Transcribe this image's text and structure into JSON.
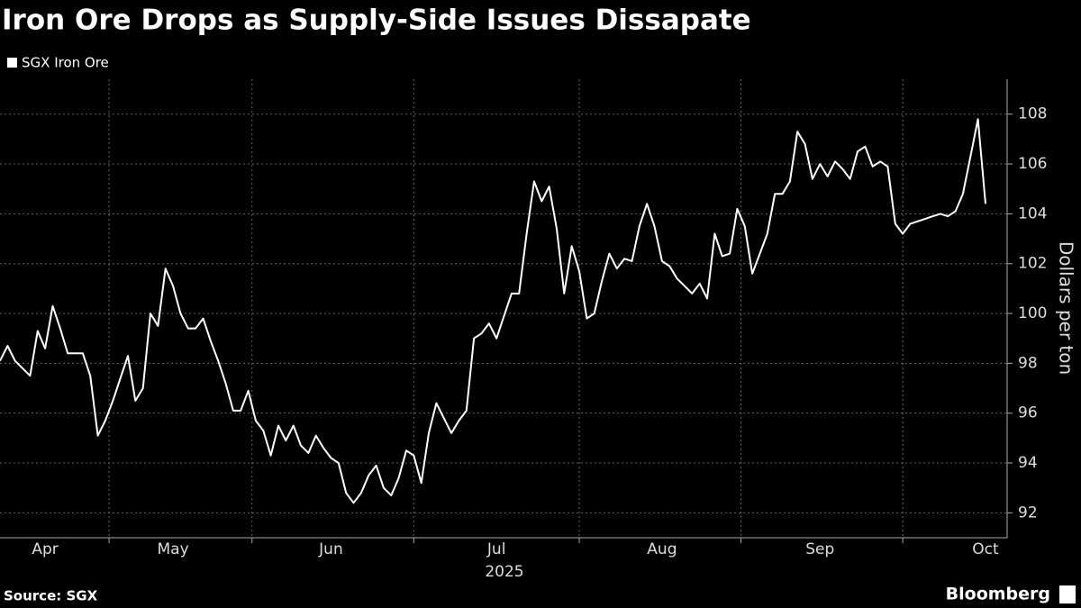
{
  "chart_data": {
    "type": "line",
    "title": "Iron Ore Drops as Supply-Side Issues Dissapate",
    "categories": [
      null,
      null,
      null,
      null,
      null,
      null,
      "Apr",
      null,
      null,
      null,
      null,
      null,
      null,
      null,
      null,
      null,
      null,
      null,
      null,
      null,
      null,
      null,
      null,
      "May",
      null,
      null,
      null,
      null,
      null,
      null,
      null,
      null,
      null,
      null,
      null,
      null,
      null,
      null,
      null,
      null,
      null,
      null,
      null,
      null,
      "Jun",
      null,
      null,
      null,
      null,
      null,
      null,
      null,
      null,
      null,
      null,
      null,
      null,
      null,
      null,
      null,
      null,
      null,
      null,
      null,
      null,
      null,
      "Jul",
      null,
      null,
      null,
      null,
      null,
      null,
      null,
      null,
      null,
      null,
      null,
      null,
      null,
      null,
      null,
      null,
      null,
      null,
      null,
      null,
      null,
      "Aug",
      null,
      null,
      null,
      null,
      null,
      null,
      null,
      null,
      null,
      null,
      null,
      null,
      null,
      null,
      null,
      null,
      null,
      null,
      null,
      null,
      "Sep",
      null,
      null,
      null,
      null,
      null,
      null,
      null,
      null,
      null,
      null,
      null,
      null,
      null,
      null,
      null,
      null,
      null,
      null,
      null,
      null,
      null,
      "Oct"
    ],
    "xlabel": "2025",
    "series": [
      {
        "name": "SGX Iron Ore",
        "color": "#ffffff",
        "values": [
          98.1,
          98.7,
          98.1,
          97.8,
          97.5,
          99.3,
          98.6,
          100.3,
          99.4,
          98.4,
          98.4,
          98.4,
          97.5,
          95.1,
          95.7,
          96.5,
          97.4,
          98.3,
          96.5,
          97.0,
          100.0,
          99.5,
          101.8,
          101.1,
          100.0,
          99.4,
          99.4,
          99.8,
          98.9,
          98.1,
          97.2,
          96.1,
          96.1,
          96.9,
          95.7,
          95.3,
          94.3,
          95.5,
          94.9,
          95.5,
          94.7,
          94.4,
          95.1,
          94.6,
          94.2,
          94.0,
          92.8,
          92.4,
          92.8,
          93.5,
          93.9,
          93.0,
          92.7,
          93.4,
          94.5,
          94.3,
          93.2,
          95.2,
          96.4,
          95.8,
          95.2,
          95.7,
          96.1,
          99.0,
          99.2,
          99.6,
          99.0,
          99.9,
          100.8,
          100.8,
          103.2,
          105.3,
          104.5,
          105.1,
          103.4,
          100.8,
          102.7,
          101.7,
          99.8,
          100.0,
          101.3,
          102.4,
          101.8,
          102.2,
          102.1,
          103.5,
          104.4,
          103.5,
          102.1,
          101.9,
          101.4,
          101.1,
          100.8,
          101.2,
          100.6,
          103.2,
          102.3,
          102.4,
          104.2,
          103.5,
          101.6,
          102.4,
          103.2,
          104.8,
          104.8,
          105.3,
          107.3,
          106.8,
          105.4,
          106.0,
          105.5,
          106.1,
          105.8,
          105.4,
          106.5,
          106.7,
          105.9,
          106.1,
          105.9,
          103.6,
          103.2,
          103.6,
          103.7,
          103.8,
          103.9,
          104.0,
          103.9,
          104.1,
          104.8,
          106.3,
          107.8,
          104.4
        ]
      }
    ],
    "ylabel": "Dollars per ton",
    "ylim": [
      91,
      109.4
    ],
    "yticks": [
      92,
      94,
      96,
      98,
      100,
      102,
      104,
      106,
      108
    ],
    "grid": true,
    "source": "Source: SGX",
    "brand": "Bloomberg"
  }
}
